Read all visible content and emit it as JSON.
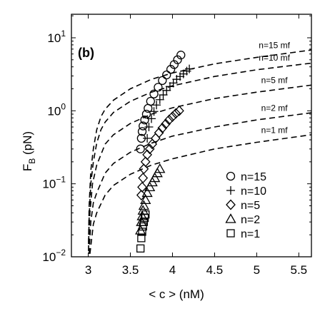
{
  "chart_data": {
    "type": "scatter",
    "panel_label": "(b)",
    "xlabel": "< c > (nM)",
    "ylabel_main": "F",
    "ylabel_sub": "B",
    "ylabel_unit": " (pN)",
    "xlim": [
      2.8,
      5.65
    ],
    "ylim": [
      0.01,
      21
    ],
    "yscale": "log",
    "xticks": [
      3,
      3.5,
      4,
      4.5,
      5,
      5.5
    ],
    "xtick_labels": [
      "3",
      "3.5",
      "4",
      "4.5",
      "5",
      "5.5"
    ],
    "yticks": [
      {
        "value": 0.01,
        "base": "10",
        "exp": "−2"
      },
      {
        "value": 0.1,
        "base": "10",
        "exp": "−1"
      },
      {
        "value": 1,
        "base": "10",
        "exp": "0"
      },
      {
        "value": 10,
        "base": "10",
        "exp": "1"
      }
    ],
    "mean_field_curves": [
      {
        "name": "n=15 mf",
        "x": [
          3.003,
          3.01,
          3.03,
          3.06,
          3.1,
          3.15,
          3.2,
          3.3,
          3.5,
          3.75,
          4.0,
          4.5,
          5.0,
          5.65
        ],
        "y": [
          0.015,
          0.05,
          0.15,
          0.3,
          0.55,
          0.83,
          1.05,
          1.4,
          2.0,
          2.7,
          3.3,
          4.4,
          5.4,
          6.8
        ]
      },
      {
        "name": "n=10 mf",
        "x": [
          3.003,
          3.01,
          3.03,
          3.06,
          3.1,
          3.15,
          3.2,
          3.3,
          3.5,
          3.75,
          4.0,
          4.5,
          5.0,
          5.65
        ],
        "y": [
          0.012,
          0.035,
          0.1,
          0.2,
          0.36,
          0.55,
          0.7,
          0.95,
          1.35,
          1.8,
          2.2,
          2.95,
          3.65,
          4.5
        ]
      },
      {
        "name": "n=5 mf",
        "x": [
          3.005,
          3.02,
          3.05,
          3.1,
          3.2,
          3.3,
          3.5,
          3.75,
          4.0,
          4.5,
          5.0,
          5.65
        ],
        "y": [
          0.015,
          0.04,
          0.1,
          0.18,
          0.35,
          0.47,
          0.67,
          0.9,
          1.1,
          1.47,
          1.8,
          2.25
        ]
      },
      {
        "name": "n=2 mf",
        "x": [
          3.01,
          3.03,
          3.06,
          3.1,
          3.2,
          3.3,
          3.5,
          3.75,
          4.0,
          4.5,
          5.0,
          5.65
        ],
        "y": [
          0.011,
          0.03,
          0.055,
          0.075,
          0.14,
          0.19,
          0.27,
          0.36,
          0.45,
          0.6,
          0.75,
          0.94
        ]
      },
      {
        "name": "n=1 mf",
        "x": [
          3.02,
          3.06,
          3.1,
          3.2,
          3.3,
          3.5,
          3.75,
          4.0,
          4.5,
          5.0,
          5.65
        ],
        "y": [
          0.011,
          0.028,
          0.04,
          0.07,
          0.095,
          0.135,
          0.18,
          0.22,
          0.3,
          0.37,
          0.47
        ]
      }
    ],
    "series": [
      {
        "name": "n=15",
        "marker": "circle",
        "x": [
          3.62,
          3.63,
          3.64,
          3.65,
          3.67,
          3.69,
          3.71,
          3.74,
          3.78,
          3.83,
          3.88,
          3.93,
          3.98,
          4.02,
          4.06,
          4.1
        ],
        "y": [
          0.3,
          0.42,
          0.52,
          0.62,
          0.75,
          0.9,
          1.08,
          1.35,
          1.7,
          2.1,
          2.6,
          3.1,
          3.7,
          4.3,
          5.0,
          5.8
        ]
      },
      {
        "name": "n=10",
        "marker": "plus",
        "x": [
          3.7,
          3.72,
          3.75,
          3.78,
          3.81,
          3.85,
          3.89,
          3.93,
          3.97,
          4.01,
          4.05,
          4.09,
          4.13,
          4.17,
          4.2
        ],
        "y": [
          0.42,
          0.6,
          0.78,
          0.98,
          1.2,
          1.42,
          1.65,
          1.9,
          2.15,
          2.4,
          2.7,
          2.95,
          3.2,
          3.5,
          3.75
        ]
      },
      {
        "name": "n=5",
        "marker": "diamond",
        "x": [
          3.63,
          3.64,
          3.65,
          3.66,
          3.68,
          3.7,
          3.73,
          3.76,
          3.8,
          3.84,
          3.88,
          3.92,
          3.96,
          4.0,
          4.04,
          4.08
        ],
        "y": [
          0.07,
          0.09,
          0.12,
          0.16,
          0.2,
          0.25,
          0.3,
          0.35,
          0.42,
          0.5,
          0.58,
          0.66,
          0.75,
          0.83,
          0.92,
          1.0
        ]
      },
      {
        "name": "n=2",
        "marker": "triangle",
        "x": [
          3.62,
          3.63,
          3.64,
          3.65,
          3.66,
          3.68,
          3.7,
          3.73,
          3.76,
          3.79,
          3.82,
          3.85
        ],
        "y": [
          0.023,
          0.03,
          0.036,
          0.043,
          0.05,
          0.06,
          0.075,
          0.09,
          0.105,
          0.12,
          0.14,
          0.16
        ]
      },
      {
        "name": "n=1",
        "marker": "square",
        "x": [
          3.62,
          3.63,
          3.64,
          3.65,
          3.66,
          3.67,
          3.68
        ],
        "y": [
          0.013,
          0.018,
          0.022,
          0.026,
          0.03,
          0.034,
          0.038
        ]
      }
    ]
  }
}
